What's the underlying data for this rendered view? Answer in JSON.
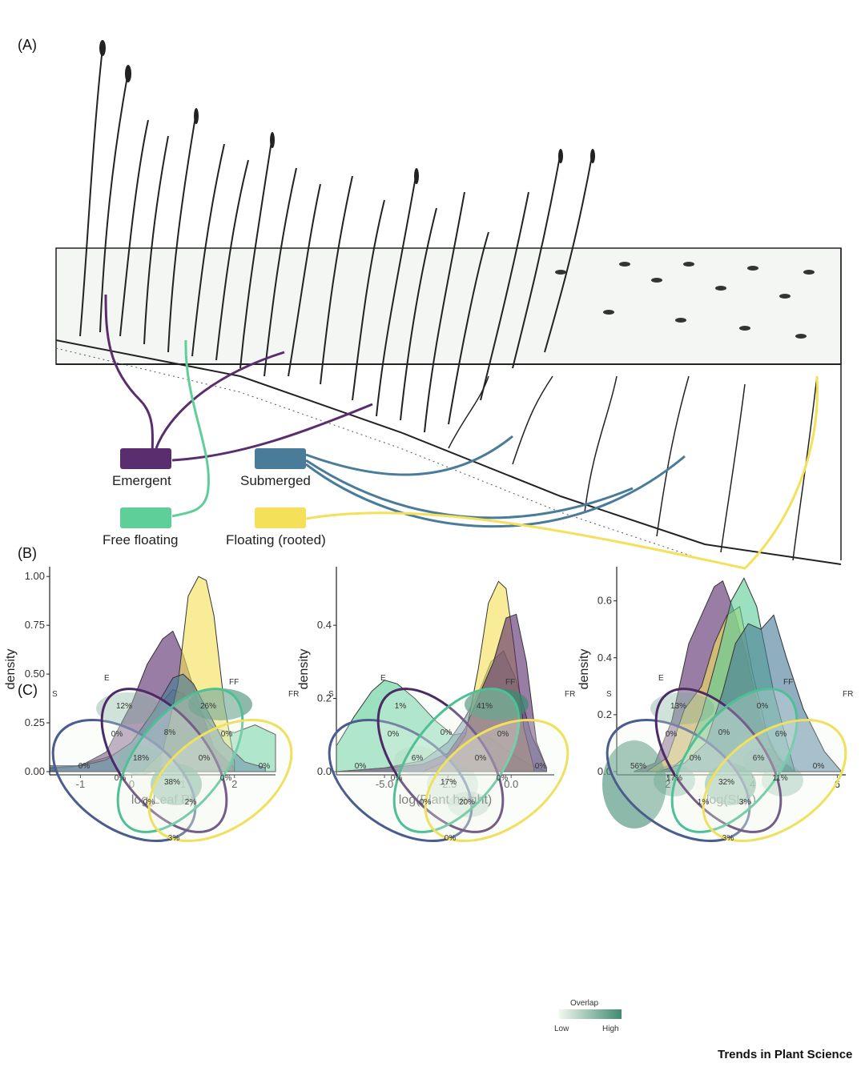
{
  "figure": {
    "panel_a": "(A)",
    "panel_b": "(B)",
    "panel_c": "(C)",
    "credit": "Trends in Plant Science"
  },
  "groups": [
    {
      "name": "Emergent",
      "color": "#5a2d6e"
    },
    {
      "name": "Submerged",
      "color": "#4a7c9a"
    },
    {
      "name": "Free floating",
      "color": "#5ecf99"
    },
    {
      "name": "Floating (rooted)",
      "color": "#f5e05a"
    }
  ],
  "chart_data": [
    {
      "type": "area",
      "xlabel": "log(Leaf P)",
      "ylabel": "density",
      "xlim": [
        -1.6,
        2.8
      ],
      "ylim": [
        0,
        1.05
      ],
      "xticks": [
        "-1",
        "0",
        "1",
        "2"
      ],
      "yticks": [
        "0.00",
        "0.25",
        "0.50",
        "0.75",
        "1.00"
      ],
      "xtick_values": [
        -1,
        0,
        1,
        2
      ],
      "ytick_values": [
        0,
        0.25,
        0.5,
        0.75,
        1.0
      ],
      "grid": false,
      "series": [
        {
          "group": "Free floating",
          "x": [
            -1.6,
            -1.2,
            -0.8,
            -0.4,
            0,
            0.4,
            0.8,
            1.0,
            1.2,
            1.6,
            2.0,
            2.4,
            2.8
          ],
          "y": [
            0.02,
            0.02,
            0.05,
            0.08,
            0.15,
            0.3,
            0.42,
            0.4,
            0.35,
            0.22,
            0.2,
            0.24,
            0.19
          ]
        },
        {
          "group": "Emergent",
          "x": [
            -1.6,
            -1.0,
            -0.5,
            0,
            0.3,
            0.6,
            0.8,
            1.0,
            1.3,
            1.6,
            2.0
          ],
          "y": [
            0.02,
            0.03,
            0.1,
            0.35,
            0.55,
            0.68,
            0.72,
            0.6,
            0.35,
            0.12,
            0.02
          ]
        },
        {
          "group": "Floating (rooted)",
          "x": [
            0.2,
            0.6,
            0.9,
            1.1,
            1.3,
            1.45,
            1.6,
            1.8,
            2.0
          ],
          "y": [
            0.0,
            0.1,
            0.45,
            0.9,
            1.0,
            0.98,
            0.8,
            0.35,
            0.05
          ]
        },
        {
          "group": "Submerged",
          "x": [
            -1.6,
            -1.0,
            -0.5,
            0,
            0.4,
            0.8,
            1.0,
            1.2,
            1.5,
            1.8,
            2.2,
            2.6
          ],
          "y": [
            0.03,
            0.03,
            0.06,
            0.15,
            0.3,
            0.48,
            0.5,
            0.45,
            0.3,
            0.15,
            0.05,
            0.02
          ]
        }
      ]
    },
    {
      "type": "area",
      "xlabel": "log(Plant height)",
      "ylabel": "density",
      "xlim": [
        -6.9,
        1.7
      ],
      "ylim": [
        0,
        0.56
      ],
      "xticks": [
        "-5.0",
        "-2.5",
        "0.0"
      ],
      "yticks": [
        "0.0",
        "0.2",
        "0.4"
      ],
      "xtick_values": [
        -5,
        -2.5,
        0
      ],
      "ytick_values": [
        0,
        0.2,
        0.4
      ],
      "grid": false,
      "series": [
        {
          "group": "Free floating",
          "x": [
            -6.9,
            -6.2,
            -5.5,
            -5.0,
            -4.5,
            -3.8,
            -3.0,
            -2.3,
            -1.5,
            -0.8,
            0,
            0.7,
            1.4
          ],
          "y": [
            0.07,
            0.15,
            0.22,
            0.25,
            0.24,
            0.2,
            0.14,
            0.1,
            0.11,
            0.09,
            0.05,
            0.02,
            0.0
          ]
        },
        {
          "group": "Submerged",
          "x": [
            -6.9,
            -5.0,
            -3.5,
            -2.5,
            -1.8,
            -1.2,
            -0.8,
            -0.3,
            0.2,
            0.8,
            1.4
          ],
          "y": [
            0.0,
            0.01,
            0.03,
            0.08,
            0.15,
            0.23,
            0.3,
            0.33,
            0.25,
            0.1,
            0.01
          ]
        },
        {
          "group": "Floating (rooted)",
          "x": [
            -3.5,
            -2.5,
            -1.8,
            -1.3,
            -0.9,
            -0.5,
            -0.2,
            0.1,
            0.5,
            0.9
          ],
          "y": [
            0.0,
            0.03,
            0.1,
            0.28,
            0.46,
            0.52,
            0.5,
            0.35,
            0.12,
            0.01
          ]
        },
        {
          "group": "Emergent",
          "x": [
            -6.9,
            -5.0,
            -3.5,
            -2.5,
            -1.8,
            -1.2,
            -0.7,
            -0.2,
            0.2,
            0.6,
            1.0,
            1.4
          ],
          "y": [
            0.0,
            0.01,
            0.02,
            0.05,
            0.12,
            0.22,
            0.3,
            0.42,
            0.43,
            0.3,
            0.08,
            0.01
          ]
        }
      ]
    },
    {
      "type": "area",
      "xlabel": "log(SLA)",
      "ylabel": "density",
      "xlim": [
        0.8,
        6.2
      ],
      "ylim": [
        0,
        0.72
      ],
      "xticks": [
        "2",
        "4",
        "6"
      ],
      "yticks": [
        "0.0",
        "0.2",
        "0.4",
        "0.6"
      ],
      "xtick_values": [
        2,
        4,
        6
      ],
      "ytick_values": [
        0,
        0.2,
        0.4,
        0.6
      ],
      "grid": false,
      "series": [
        {
          "group": "Emergent",
          "x": [
            1.2,
            1.7,
            2.1,
            2.5,
            2.8,
            3.1,
            3.3,
            3.6,
            3.9,
            4.2,
            4.6,
            5.0
          ],
          "y": [
            0.0,
            0.03,
            0.18,
            0.45,
            0.55,
            0.65,
            0.67,
            0.55,
            0.38,
            0.18,
            0.05,
            0.0
          ]
        },
        {
          "group": "Floating (rooted)",
          "x": [
            1.5,
            2.0,
            2.4,
            2.8,
            3.1,
            3.4,
            3.7,
            4.0,
            4.4,
            4.8
          ],
          "y": [
            0.0,
            0.05,
            0.22,
            0.3,
            0.45,
            0.55,
            0.58,
            0.35,
            0.1,
            0.0
          ]
        },
        {
          "group": "Free floating",
          "x": [
            2.0,
            2.4,
            2.8,
            3.2,
            3.5,
            3.8,
            4.1,
            4.5,
            5.0
          ],
          "y": [
            0.0,
            0.05,
            0.2,
            0.42,
            0.6,
            0.68,
            0.58,
            0.28,
            0.0
          ]
        },
        {
          "group": "Submerged",
          "x": [
            1.8,
            2.4,
            2.9,
            3.3,
            3.6,
            3.9,
            4.2,
            4.5,
            4.8,
            5.2,
            5.7,
            6.1
          ],
          "y": [
            0.0,
            0.03,
            0.1,
            0.28,
            0.45,
            0.52,
            0.5,
            0.55,
            0.4,
            0.22,
            0.07,
            0.0
          ]
        }
      ]
    }
  ],
  "venn": {
    "set_labels": {
      "S": "S",
      "E": "E",
      "FF": "FF",
      "FR": "FR"
    },
    "legend_title": "Overlap",
    "legend_low": "Low",
    "legend_high": "High",
    "diagrams": [
      {
        "E_only": "12%",
        "FF_only": "26%",
        "FR_only": "0%",
        "S_only": "0%",
        "E_FF": "8%",
        "FF_FR": "0%",
        "S_E": "0%",
        "E_FF_S": "18%",
        "E_FF_FR": "0%",
        "center": "38%",
        "S_FF": "0%",
        "E_FR": "0%",
        "S_FR": "3%",
        "S_FF_FR": "0%",
        "S_E_FR": "2%",
        "shade": {
          "E_only": 0.35,
          "FF_only": 0.7,
          "E_FF_S": 0.45,
          "center": 0.85
        }
      },
      {
        "E_only": "1%",
        "FF_only": "41%",
        "FR_only": "0%",
        "S_only": "0%",
        "E_FF": "0%",
        "FF_FR": "0%",
        "S_E": "0%",
        "E_FF_S": "6%",
        "E_FF_FR": "0%",
        "center": "17%",
        "S_FF": "0%",
        "E_FR": "0%",
        "S_FR": "0%",
        "S_FF_FR": "0%",
        "S_E_FR": "20%",
        "shade": {
          "FF_only": 0.9,
          "center": 0.25,
          "S_E_FR": 0.3,
          "E_FF_S": 0.15
        }
      },
      {
        "E_only": "13%",
        "FF_only": "0%",
        "FR_only": "0%",
        "S_only": "56%",
        "E_FF": "0%",
        "FF_FR": "6%",
        "S_E": "0%",
        "E_FF_S": "0%",
        "E_FF_FR": "6%",
        "center": "32%",
        "S_FF": "17%",
        "E_FR": "11%",
        "S_FR": "3%",
        "S_FF_FR": "1%",
        "S_E_FR": "3%",
        "shade": {
          "S_only": 0.7,
          "E_only": 0.35,
          "center": 0.85,
          "S_FF": 0.5,
          "E_FR": 0.35,
          "E_FF_FR": 0.25
        }
      }
    ]
  }
}
